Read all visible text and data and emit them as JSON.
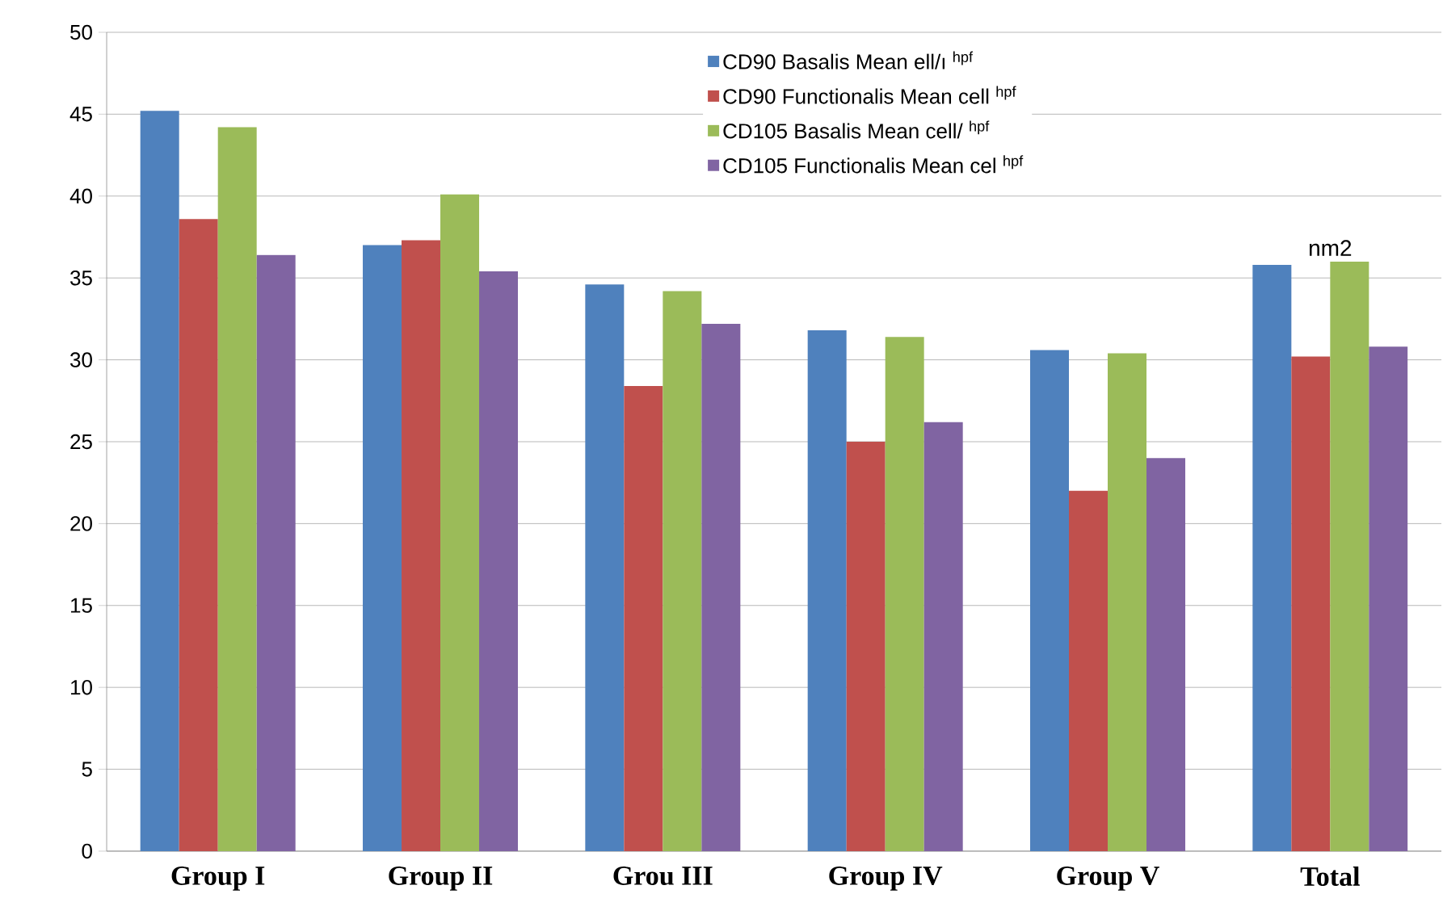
{
  "chart_data": {
    "type": "bar",
    "categories": [
      "Group I",
      "Group II",
      "Grou III",
      "Group IV",
      "Group V",
      "Total"
    ],
    "series": [
      {
        "name": "CD90  Basalis  Mean ell/ı  $^{hpf}$",
        "color": "#4f81bd",
        "values": [
          45.2,
          37.0,
          34.6,
          31.8,
          30.6,
          35.8
        ]
      },
      {
        "name": "CD90  Functionalis  Mean  cell  $^{hpf}$",
        "color": "#c0504d",
        "values": [
          38.6,
          37.3,
          28.4,
          25.0,
          22.0,
          30.2
        ]
      },
      {
        "name": "CD105  Basalis  Mean cell/  $^{hpf}$",
        "color": "#9bbb59",
        "values": [
          44.2,
          40.1,
          34.2,
          31.4,
          30.4,
          36.0
        ]
      },
      {
        "name": "CD105  Functionalis  Mean  cel  $^{hpf}$",
        "color": "#8064a2",
        "values": [
          36.4,
          35.4,
          32.2,
          26.2,
          24.0,
          30.8
        ]
      }
    ],
    "ylim": [
      0,
      50
    ],
    "yticks": [
      0,
      5,
      10,
      15,
      20,
      25,
      30,
      35,
      40,
      45,
      50
    ],
    "grid": "y",
    "legend": "top",
    "annotations": [
      {
        "text": "nm2",
        "x": "Total",
        "y": 36.0
      }
    ]
  }
}
